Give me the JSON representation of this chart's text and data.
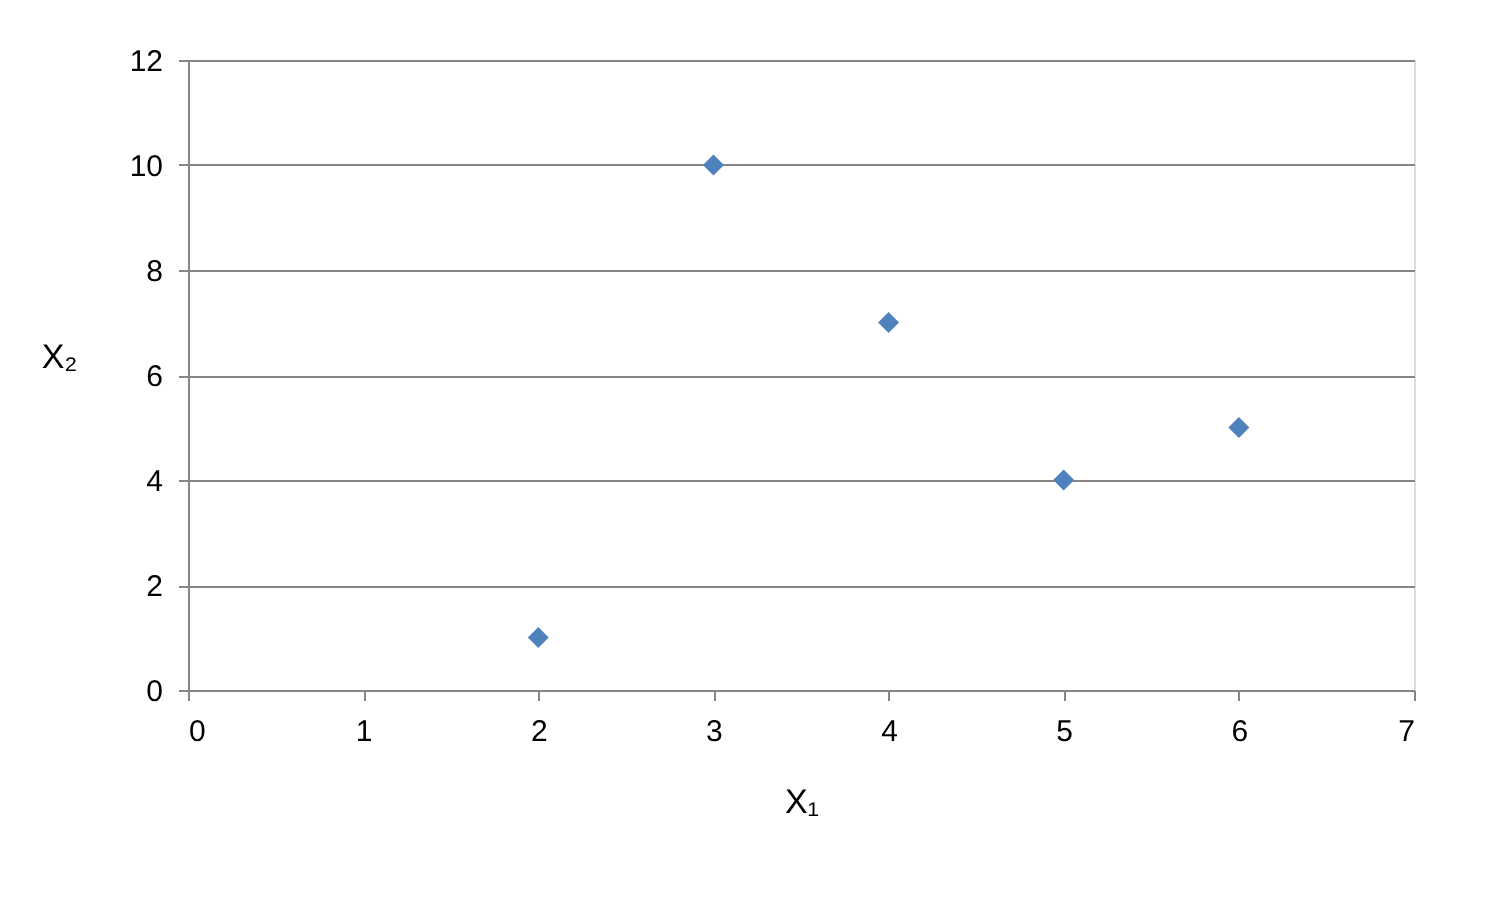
{
  "chart_data": {
    "type": "scatter",
    "xlabel": "X₁",
    "ylabel": "X₂",
    "x": [
      2,
      3,
      4,
      5,
      6
    ],
    "series": [
      {
        "color": "#4f81bd",
        "values": [
          1,
          10,
          7,
          4,
          5
        ]
      }
    ],
    "xlim": [
      0,
      7
    ],
    "xticks": [
      0,
      1,
      2,
      3,
      4,
      5,
      6,
      7
    ],
    "ylim": [
      0,
      12
    ],
    "yticks": [
      0,
      2,
      4,
      6,
      8,
      10,
      12
    ],
    "grid": "y",
    "marker": "diamond"
  }
}
